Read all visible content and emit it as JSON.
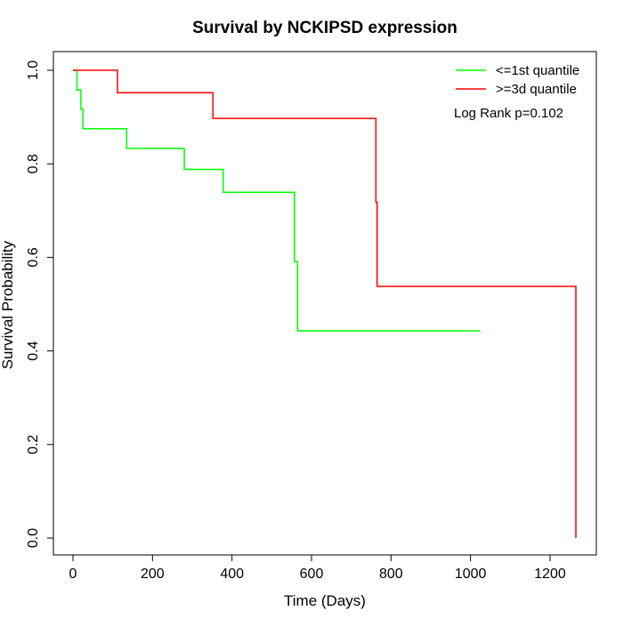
{
  "chart_data": {
    "type": "line",
    "subtype": "kaplan-meier step curve",
    "title": "Survival by NCKIPSD expression",
    "xlabel": "Time (Days)",
    "ylabel": "Survival Probability",
    "xlim": [
      0,
      1270
    ],
    "ylim": [
      0,
      1.0
    ],
    "xticks": [
      0,
      200,
      400,
      600,
      800,
      1000,
      1200
    ],
    "xtick_labels": [
      "0",
      "200",
      "400",
      "600",
      "800",
      "1000",
      "1200"
    ],
    "yticks": [
      0.0,
      0.2,
      0.4,
      0.6,
      0.8,
      1.0
    ],
    "ytick_labels": [
      "0.0",
      "0.2",
      "0.4",
      "0.6",
      "0.8",
      "1.0"
    ],
    "grid": false,
    "legend_position": "top-right",
    "annotation": "Log Rank p=0.102",
    "series": [
      {
        "name": "<=1st quantile",
        "color": "#00ff00",
        "x": [
          0,
          10,
          20,
          25,
          135,
          280,
          378,
          557,
          565,
          1025
        ],
        "y": [
          1.0,
          0.958,
          0.917,
          0.875,
          0.833,
          0.788,
          0.739,
          0.591,
          0.443,
          0.443
        ]
      },
      {
        "name": ">=3d quantile",
        "color": "#ff0000",
        "x": [
          0,
          112,
          352,
          762,
          765,
          1265,
          1265
        ],
        "y": [
          1.0,
          0.952,
          0.897,
          0.718,
          0.538,
          0.538,
          0.0
        ]
      }
    ]
  }
}
